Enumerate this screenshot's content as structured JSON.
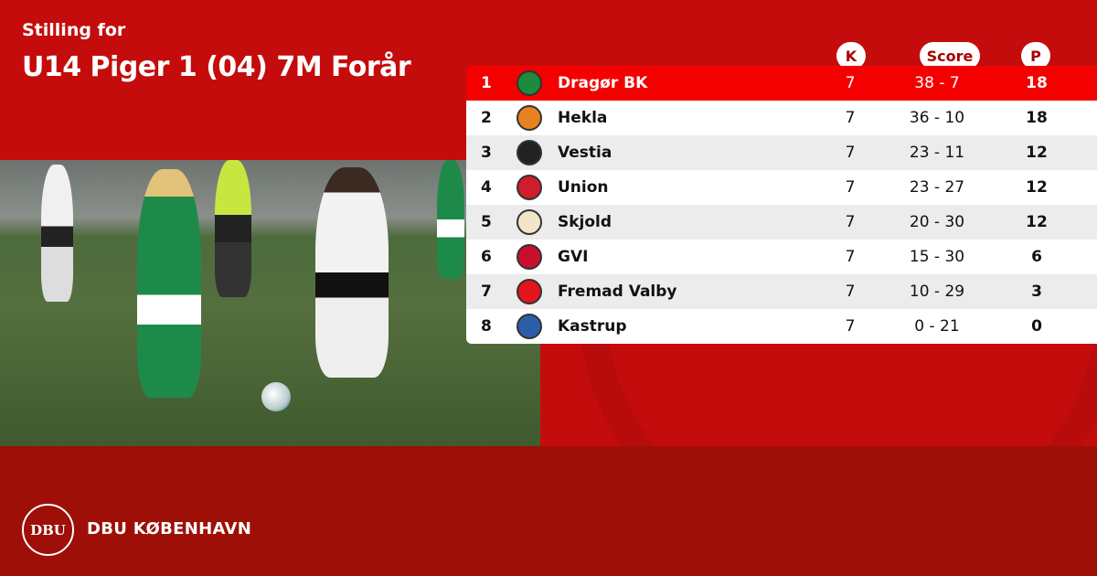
{
  "header": {
    "subtitle": "Stilling for",
    "title": "U14 Piger 1 (04) 7M Forår"
  },
  "columns": {
    "k": "K",
    "score": "Score",
    "p": "P"
  },
  "rows": [
    {
      "pos": "1",
      "team": "Dragør BK",
      "k": "7",
      "score": "38 - 7",
      "p": "18",
      "logo_color": "#1e8a3c"
    },
    {
      "pos": "2",
      "team": "Hekla",
      "k": "7",
      "score": "36 - 10",
      "p": "18",
      "logo_color": "#e8821e"
    },
    {
      "pos": "3",
      "team": "Vestia",
      "k": "7",
      "score": "23 - 11",
      "p": "12",
      "logo_color": "#222222"
    },
    {
      "pos": "4",
      "team": "Union",
      "k": "7",
      "score": "23 - 27",
      "p": "12",
      "logo_color": "#d01c2c"
    },
    {
      "pos": "5",
      "team": "Skjold",
      "k": "7",
      "score": "20 - 30",
      "p": "12",
      "logo_color": "#f3e6c8"
    },
    {
      "pos": "6",
      "team": "GVI",
      "k": "7",
      "score": "15 - 30",
      "p": "6",
      "logo_color": "#c8102e"
    },
    {
      "pos": "7",
      "team": "Fremad Valby",
      "k": "7",
      "score": "10 - 29",
      "p": "3",
      "logo_color": "#e2141c"
    },
    {
      "pos": "8",
      "team": "Kastrup",
      "k": "7",
      "score": "0 - 21",
      "p": "0",
      "logo_color": "#2a5fa8"
    }
  ],
  "footer": {
    "logo_text": "DBU",
    "brand": "DBU KØBENHAVN"
  },
  "colors": {
    "background": "#c40c0c",
    "footer": "#9e0f07",
    "highlight_row": "#f40000"
  }
}
